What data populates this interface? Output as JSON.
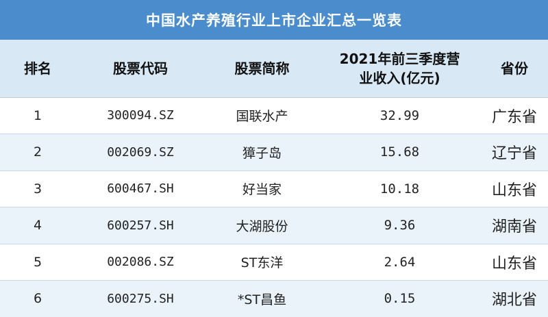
{
  "title": "中国水产养殖行业上市企业汇总一览表",
  "headers": {
    "rank": "排名",
    "code": "股票代码",
    "name": "股票简称",
    "revenue_line1": "2021年前三季度营",
    "revenue_line2": "业收入(亿元)",
    "province": "省份"
  },
  "rows": [
    {
      "rank": "1",
      "code": "300094.SZ",
      "name": "国联水产",
      "revenue": "32.99",
      "province": "广东省"
    },
    {
      "rank": "2",
      "code": "002069.SZ",
      "name": "獐子岛",
      "revenue": "15.68",
      "province": "辽宁省"
    },
    {
      "rank": "3",
      "code": "600467.SH",
      "name": "好当家",
      "revenue": "10.18",
      "province": "山东省"
    },
    {
      "rank": "4",
      "code": "600257.SH",
      "name": "大湖股份",
      "revenue": "9.36",
      "province": "湖南省"
    },
    {
      "rank": "5",
      "code": "002086.SZ",
      "name": "ST东洋",
      "revenue": "2.64",
      "province": "山东省"
    },
    {
      "rank": "6",
      "code": "600275.SH",
      "name": "*ST昌鱼",
      "revenue": "0.15",
      "province": "湖北省"
    }
  ],
  "colors": {
    "title_bg": "#4a8ccc",
    "header_bg": "#d8e9f5",
    "row_alt_bg": "#eaf3fa"
  }
}
